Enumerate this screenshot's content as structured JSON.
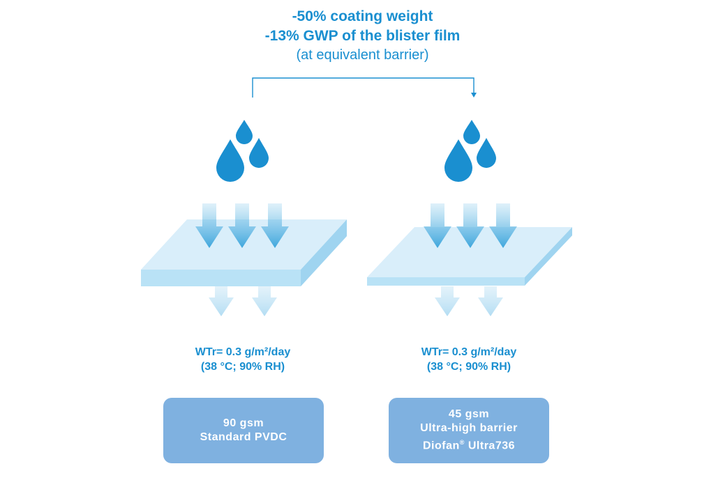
{
  "header": {
    "line1": "-50% coating weight",
    "line2": "-13% GWP of the blister film",
    "line3": "(at equivalent barrier)"
  },
  "colors": {
    "accent_blue": "#1a8fd0",
    "drop_blue": "#1a8fd0",
    "slab_top": "#d9eefa",
    "slab_front": "#b9e2f6",
    "box_fill": "#7fb1e0"
  },
  "panels": [
    {
      "wtr_line1": "WTr= 0.3 g/m²/day",
      "wtr_line2": "(38 °C; 90% RH)",
      "box_line1": "90 gsm",
      "box_line2": "Standard PVDC"
    },
    {
      "wtr_line1": "WTr= 0.3 g/m²/day",
      "wtr_line2": "(38 °C; 90% RH)",
      "box_line1": "45 gsm",
      "box_line2": "Ultra-high barrier",
      "box_line3_name": "Diofan",
      "box_line3_mark": "®",
      "box_line3_product": "Ultra736"
    }
  ]
}
